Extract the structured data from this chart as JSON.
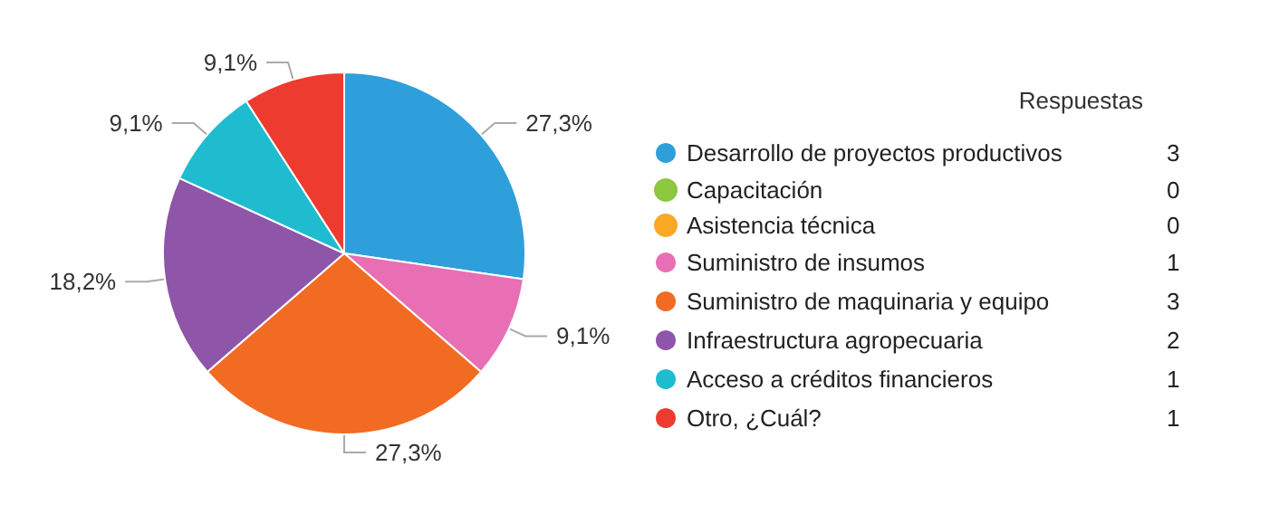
{
  "chart_data": {
    "type": "pie",
    "legend_title": "Respuestas",
    "legend": "right",
    "categories": [
      "Desarrollo de proyectos productivos",
      "Capacitación",
      "Asistencia técnica",
      "Suministro de insumos",
      "Suministro de maquinaria y equipo",
      "Infraestructura agropecuaria",
      "Acceso a créditos financieros",
      "Otro, ¿Cuál?"
    ],
    "values": [
      27.3,
      0,
      0,
      9.1,
      27.3,
      18.2,
      9.1,
      9.1
    ],
    "annotations": [
      "3",
      "0",
      "0",
      "1",
      "3",
      "2",
      "1",
      "1"
    ],
    "value_labels": [
      "27,3%",
      null,
      null,
      "9,1%",
      "27,3%",
      "18,2%",
      "9,1%",
      "9,1%"
    ],
    "colors": [
      "#2f9fdc",
      "#8dc63f",
      "#f9a825",
      "#e86fb4",
      "#f26b22",
      "#8e55a9",
      "#1fbccf",
      "#ee3b2f"
    ]
  }
}
